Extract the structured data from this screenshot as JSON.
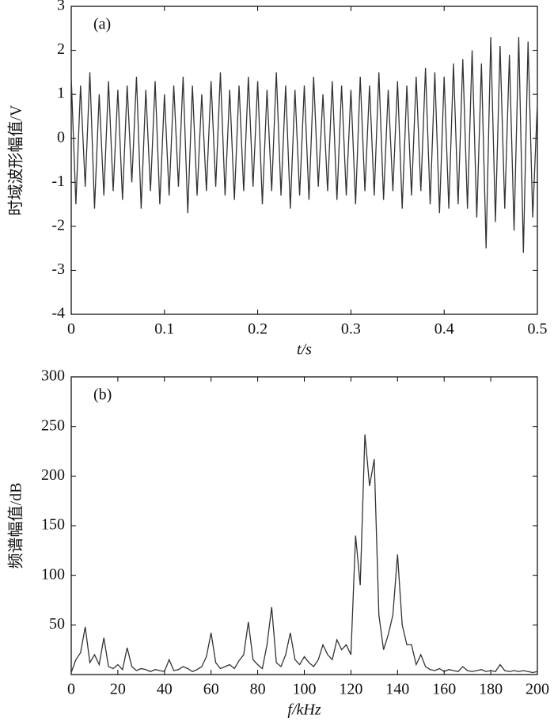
{
  "chart_data": [
    {
      "type": "line",
      "panel_label": "(a)",
      "xlabel": "t/s",
      "ylabel": "时域波形幅值/V",
      "color": "#333333",
      "x": [
        0,
        0.005,
        0.01,
        0.015,
        0.02,
        0.025,
        0.03,
        0.035,
        0.04,
        0.045,
        0.05,
        0.055,
        0.06,
        0.065,
        0.07,
        0.075,
        0.08,
        0.085,
        0.09,
        0.095,
        0.1,
        0.105,
        0.11,
        0.115,
        0.12,
        0.125,
        0.13,
        0.135,
        0.14,
        0.145,
        0.15,
        0.155,
        0.16,
        0.165,
        0.17,
        0.175,
        0.18,
        0.185,
        0.19,
        0.195,
        0.2,
        0.205,
        0.21,
        0.215,
        0.22,
        0.225,
        0.23,
        0.235,
        0.24,
        0.245,
        0.25,
        0.255,
        0.26,
        0.265,
        0.27,
        0.275,
        0.28,
        0.285,
        0.29,
        0.295,
        0.3,
        0.305,
        0.31,
        0.315,
        0.32,
        0.325,
        0.33,
        0.335,
        0.34,
        0.345,
        0.35,
        0.355,
        0.36,
        0.365,
        0.37,
        0.375,
        0.38,
        0.385,
        0.39,
        0.395,
        0.4,
        0.405,
        0.41,
        0.415,
        0.42,
        0.425,
        0.43,
        0.435,
        0.44,
        0.445,
        0.45,
        0.455,
        0.46,
        0.465,
        0.47,
        0.475,
        0.48,
        0.485,
        0.49,
        0.495,
        0.5
      ],
      "values": [
        1.4,
        -1.5,
        1.2,
        -1.1,
        1.5,
        -1.6,
        1.0,
        -1.3,
        1.3,
        -1.2,
        1.1,
        -1.4,
        1.2,
        -1.0,
        1.4,
        -1.6,
        1.1,
        -1.2,
        1.3,
        -1.5,
        1.0,
        -1.3,
        1.2,
        -1.1,
        1.4,
        -1.7,
        1.2,
        -1.3,
        1.0,
        -1.2,
        1.3,
        -1.1,
        1.5,
        -1.3,
        1.1,
        -1.4,
        1.2,
        -1.2,
        1.4,
        -1.1,
        1.3,
        -1.5,
        1.1,
        -1.2,
        1.5,
        -1.3,
        1.2,
        -1.6,
        1.1,
        -1.3,
        1.2,
        -1.4,
        1.4,
        -1.1,
        1.0,
        -1.2,
        1.3,
        -1.4,
        1.2,
        -1.3,
        1.1,
        -1.5,
        1.4,
        -1.2,
        1.2,
        -1.3,
        1.5,
        -1.4,
        1.1,
        -1.2,
        1.3,
        -1.6,
        1.2,
        -1.3,
        1.4,
        -1.2,
        1.6,
        -1.5,
        1.5,
        -1.7,
        1.4,
        -1.6,
        1.7,
        -1.5,
        1.8,
        -1.6,
        2.0,
        -1.8,
        1.7,
        -2.5,
        2.3,
        -1.9,
        2.1,
        -1.6,
        1.9,
        -2.1,
        2.3,
        -2.6,
        2.2,
        -1.8,
        0.8
      ],
      "xlim": [
        0,
        0.5
      ],
      "ylim": [
        -4,
        3
      ],
      "xticks": [
        0,
        0.1,
        0.2,
        0.3,
        0.4,
        0.5
      ],
      "yticks": [
        -4,
        -3,
        -2,
        -1,
        0,
        1,
        2,
        3
      ]
    },
    {
      "type": "line",
      "panel_label": "(b)",
      "xlabel": "f/kHz",
      "ylabel": "频谱幅值/dB",
      "color": "#333333",
      "x": [
        0,
        2,
        4,
        6,
        8,
        10,
        12,
        14,
        16,
        18,
        20,
        22,
        24,
        26,
        28,
        30,
        32,
        34,
        36,
        38,
        40,
        42,
        44,
        46,
        48,
        50,
        52,
        54,
        56,
        58,
        60,
        62,
        64,
        66,
        68,
        70,
        72,
        74,
        76,
        78,
        80,
        82,
        84,
        86,
        88,
        90,
        92,
        94,
        96,
        98,
        100,
        102,
        104,
        106,
        108,
        110,
        112,
        114,
        116,
        118,
        120,
        122,
        124,
        126,
        128,
        130,
        132,
        134,
        136,
        138,
        140,
        142,
        144,
        146,
        148,
        150,
        152,
        154,
        156,
        158,
        160,
        162,
        164,
        166,
        168,
        170,
        172,
        174,
        176,
        178,
        180,
        182,
        184,
        186,
        188,
        190,
        192,
        194,
        196,
        198,
        200
      ],
      "values": [
        2,
        15,
        22,
        48,
        12,
        20,
        10,
        37,
        8,
        6,
        10,
        5,
        27,
        8,
        4,
        6,
        5,
        3,
        5,
        4,
        3,
        15,
        4,
        5,
        8,
        6,
        3,
        5,
        8,
        18,
        42,
        12,
        6,
        8,
        10,
        6,
        14,
        20,
        53,
        15,
        10,
        6,
        30,
        68,
        12,
        8,
        20,
        42,
        15,
        10,
        18,
        12,
        8,
        15,
        30,
        20,
        15,
        35,
        25,
        30,
        20,
        140,
        90,
        242,
        190,
        217,
        60,
        25,
        40,
        60,
        121,
        50,
        30,
        30,
        10,
        20,
        8,
        5,
        4,
        6,
        3,
        5,
        4,
        3,
        8,
        4,
        3,
        4,
        5,
        3,
        4,
        3,
        10,
        4,
        3,
        4,
        3,
        4,
        3,
        2,
        3
      ],
      "xlim": [
        0,
        200
      ],
      "ylim": [
        0,
        300
      ],
      "xticks": [
        0,
        20,
        40,
        60,
        80,
        100,
        120,
        140,
        160,
        180,
        200
      ],
      "yticks": [
        50,
        100,
        150,
        200,
        250,
        300
      ]
    }
  ]
}
